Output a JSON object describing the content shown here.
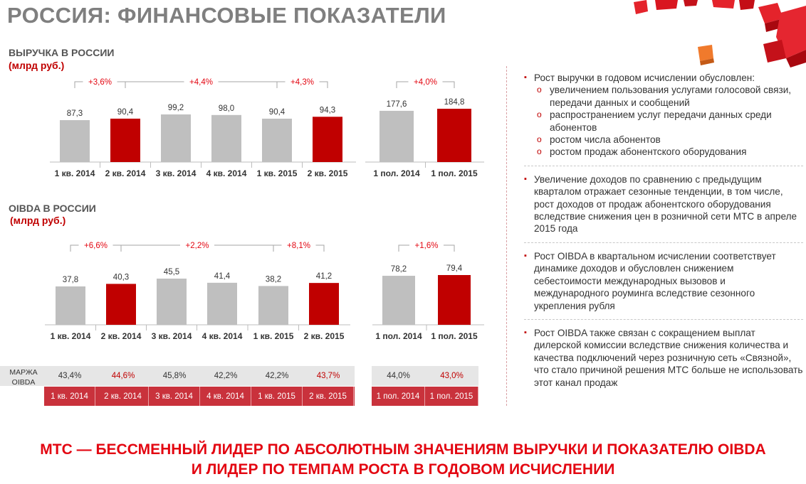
{
  "title": "РОССИЯ: ФИНАНСОВЫЕ ПОКАЗАТЕЛИ",
  "colors": {
    "accent": "#c00000",
    "gray_bar": "#bfbfbf",
    "red_bar": "#c00000",
    "footer": "#e30611",
    "table_row": "#c9323c"
  },
  "revenue": {
    "title": "ВЫРУЧКА В РОССИИ",
    "unit": "(млрд руб.)"
  },
  "oibda": {
    "title": "OIBDA В РОССИИ",
    "unit": "(млрд руб.)"
  },
  "chart_data": [
    {
      "type": "bar",
      "id": "revenue-quarterly",
      "categories": [
        "1 кв. 2014",
        "2 кв. 2014",
        "3 кв. 2014",
        "4 кв. 2014",
        "1 кв. 2015",
        "2 кв. 2015"
      ],
      "values": [
        87.3,
        90.4,
        99.2,
        98.0,
        90.4,
        94.3
      ],
      "value_labels": [
        "87,3",
        "90,4",
        "99,2",
        "98,0",
        "90,4",
        "94,3"
      ],
      "highlight": [
        false,
        true,
        false,
        false,
        false,
        true
      ],
      "growth": [
        {
          "from": 0,
          "to": 1,
          "label": "+3,6%"
        },
        {
          "from": 1,
          "to": 4,
          "label": "+4,4%"
        },
        {
          "from": 4,
          "to": 5,
          "label": "+4,3%"
        }
      ]
    },
    {
      "type": "bar",
      "id": "revenue-halfyear",
      "categories": [
        "1 пол. 2014",
        "1 пол. 2015"
      ],
      "values": [
        177.6,
        184.8
      ],
      "value_labels": [
        "177,6",
        "184,8"
      ],
      "highlight": [
        false,
        true
      ],
      "growth": [
        {
          "from": 0,
          "to": 1,
          "label": "+4,0%"
        }
      ]
    },
    {
      "type": "bar",
      "id": "oibda-quarterly",
      "categories": [
        "1 кв. 2014",
        "2 кв. 2014",
        "3 кв. 2014",
        "4 кв. 2014",
        "1 кв. 2015",
        "2 кв. 2015"
      ],
      "values": [
        37.8,
        40.3,
        45.5,
        41.4,
        38.2,
        41.2
      ],
      "value_labels": [
        "37,8",
        "40,3",
        "45,5",
        "41,4",
        "38,2",
        "41,2"
      ],
      "highlight": [
        false,
        true,
        false,
        false,
        false,
        true
      ],
      "growth": [
        {
          "from": 0,
          "to": 1,
          "label": "+6,6%"
        },
        {
          "from": 1,
          "to": 4,
          "label": "+2,2%"
        },
        {
          "from": 4,
          "to": 5,
          "label": "+8,1%"
        }
      ]
    },
    {
      "type": "bar",
      "id": "oibda-halfyear",
      "categories": [
        "1 пол. 2014",
        "1 пол. 2015"
      ],
      "values": [
        78.2,
        79.4
      ],
      "value_labels": [
        "78,2",
        "79,4"
      ],
      "highlight": [
        false,
        true
      ],
      "growth": [
        {
          "from": 0,
          "to": 1,
          "label": "+1,6%"
        }
      ]
    }
  ],
  "margin_table": {
    "label": "МАРЖА OIBDA",
    "quarterly": {
      "values": [
        "43,4%",
        "44,6%",
        "45,8%",
        "42,2%",
        "42,2%",
        "43,7%"
      ],
      "periods": [
        "1 кв. 2014",
        "2 кв. 2014",
        "3 кв. 2014",
        "4 кв. 2014",
        "1 кв. 2015",
        "2 кв. 2015"
      ],
      "highlight": [
        false,
        true,
        false,
        false,
        false,
        true
      ]
    },
    "halfyear": {
      "values": [
        "44,0%",
        "43,0%"
      ],
      "periods": [
        "1 пол. 2014",
        "1 пол. 2015"
      ],
      "highlight": [
        false,
        true
      ]
    }
  },
  "bullets": [
    {
      "text": "Рост выручки в годовом исчислении обусловлен:",
      "subs": [
        "увеличением пользования услугами голосовой связи, передачи данных и сообщений",
        "распространением услуг передачи данных среди абонентов",
        "ростом числа абонентов",
        "ростом продаж абонентского оборудования"
      ]
    },
    {
      "text": "Увеличение доходов по сравнению с предыдущим кварталом отражает сезонные тенденции, в том числе, рост доходов от продаж абонентского оборудования вследствие снижения цен в розничной сети МТС в апреле 2015 года",
      "subs": []
    },
    {
      "text": "Рост OIBDA в квартальном исчислении соответствует динамике доходов и обусловлен снижением себестоимости международных вызовов и международного роуминга вследствие сезонного укрепления рубля",
      "subs": []
    },
    {
      "text": "Рост OIBDA также связан с сокращением выплат дилерской комиссии вследствие снижения количества и качества подключений через розничную сеть «Связной», что стало причиной решения МТС больше не использовать этот канал продаж",
      "subs": []
    }
  ],
  "footer": {
    "line1": "МТС — БЕССМЕННЫЙ ЛИДЕР ПО АБСОЛЮТНЫМ ЗНАЧЕНИЯМ ВЫРУЧКИ И ПОКАЗАТЕЛЮ OIBDA",
    "line2": "И ЛИДЕР ПО ТЕМПАМ РОСТА В ГОДОВОМ ИСЧИСЛЕНИИ"
  }
}
